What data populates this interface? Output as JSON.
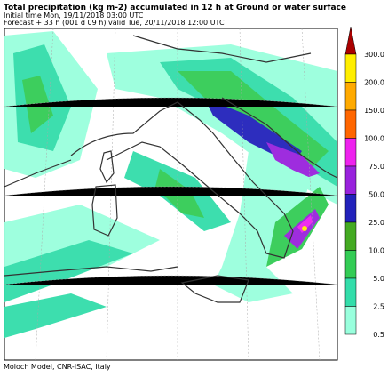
{
  "header": {
    "title": "Total precipitation (kg m-2) accumulated in  12 h at Ground or water surface",
    "initial_time": "Initial time  Mon, 19/11/2018  03:00 UTC",
    "forecast": "Forecast  +  33 h  (001 d 09 h)  valid Tue, 20/11/2018 12:00 UTC"
  },
  "legend": {
    "entries": [
      {
        "label": "300.0",
        "color": "#ffee00"
      },
      {
        "label": "200.0",
        "color": "#ffaa00"
      },
      {
        "label": "150.0",
        "color": "#ff6600"
      },
      {
        "label": "100.0",
        "color": "#ee22ee"
      },
      {
        "label": "75.0",
        "color": "#9922dd"
      },
      {
        "label": "50.0",
        "color": "#2222bb"
      },
      {
        "label": "25.0",
        "color": "#44aa22"
      },
      {
        "label": "10.0",
        "color": "#33cc55"
      },
      {
        "label": "5.0",
        "color": "#33ddaa"
      },
      {
        "label": "2.5",
        "color": "#99ffdd"
      },
      {
        "label": "0.5",
        "color": "#ffffff"
      }
    ],
    "top_color": "#aa0000"
  },
  "footer": "Moloch Model, CNR-ISAC, Italy"
}
